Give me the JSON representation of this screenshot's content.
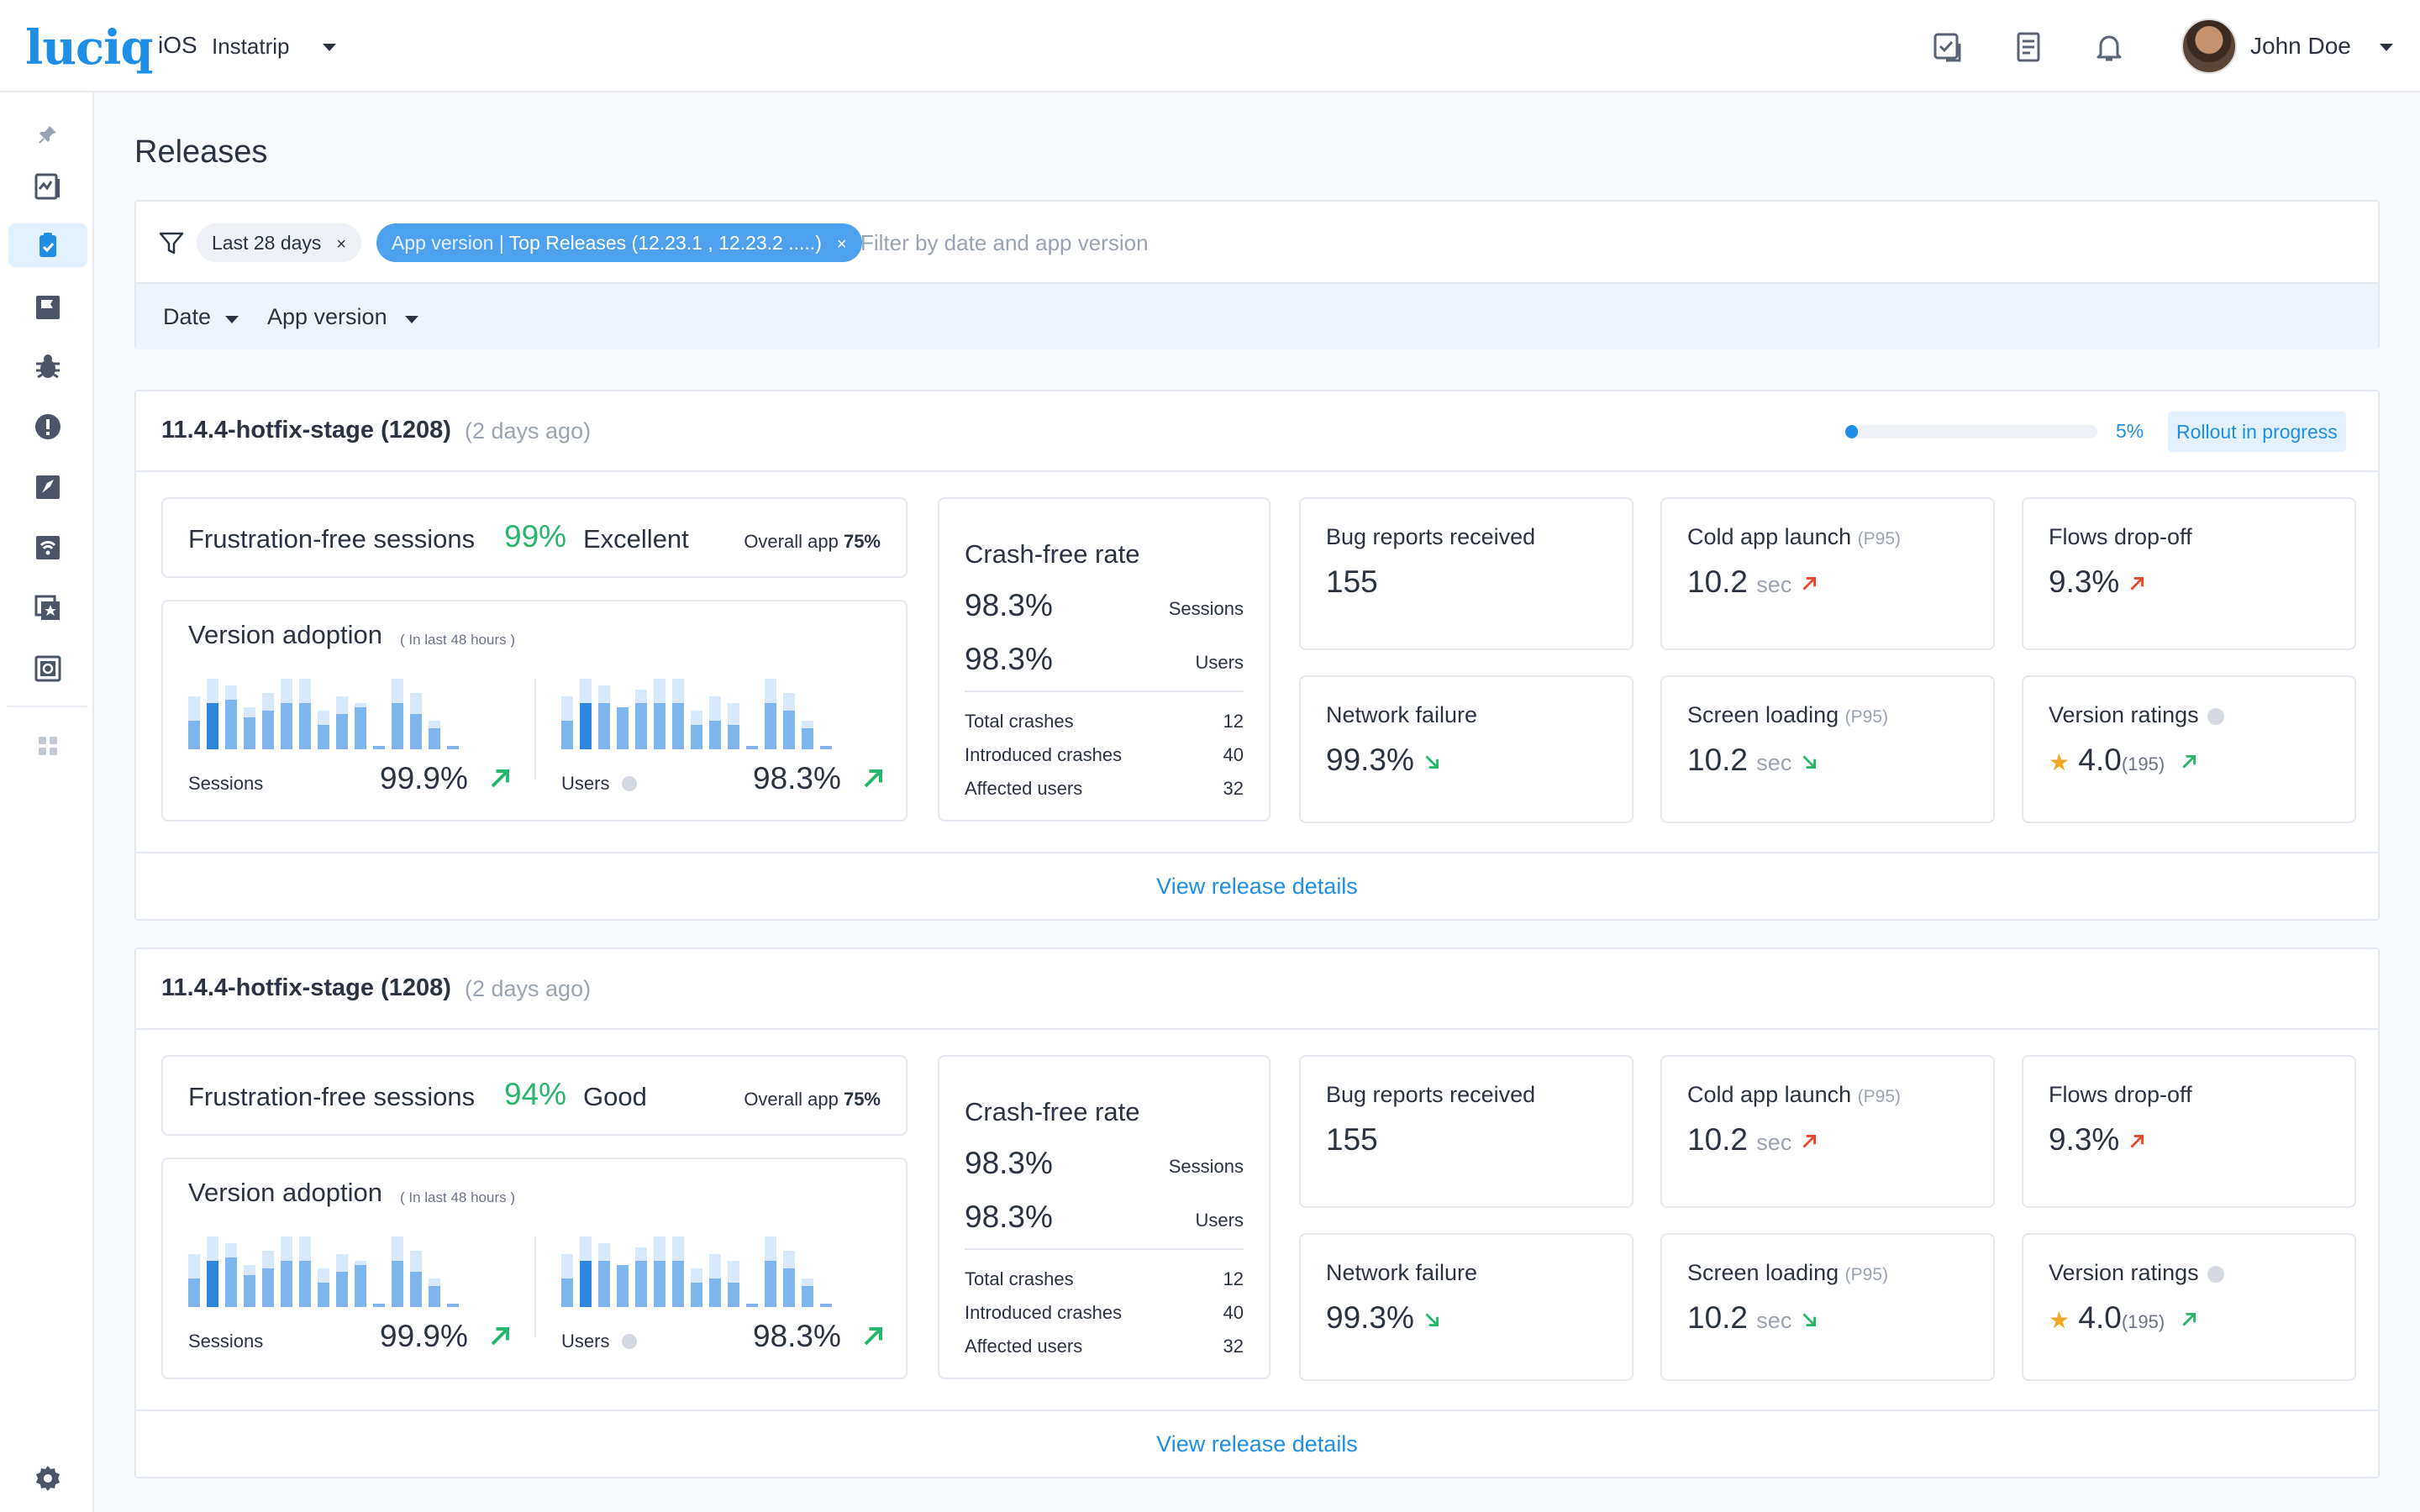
{
  "header": {
    "logo": "luciq",
    "platform": "iOS",
    "app_name": "Instatrip",
    "user_name": "John Doe",
    "icons": [
      "checklist-icon",
      "document-icon",
      "bell-icon"
    ]
  },
  "sidebar": {
    "items": [
      "pin-icon",
      "dashboard-icon",
      "releases-icon",
      "flag-icon",
      "bug-icon",
      "alert-icon",
      "launch-icon",
      "network-icon",
      "star-list-icon",
      "screen-loading-icon",
      "apps-grid-icon",
      "gear-icon"
    ],
    "active": "releases-icon"
  },
  "page": {
    "title": "Releases"
  },
  "filters": {
    "chip_date": "Last 28 days",
    "chip_version_key": "App version | ",
    "chip_version_value": "Top Releases (12.23.1 , 12.23.2 .....)",
    "chip_close": "×",
    "placeholder": "Filter by date and app version",
    "date_label": "Date",
    "version_label": "App version"
  },
  "colors": {
    "accent": "#1f8ee6",
    "good": "#27b76a",
    "bad": "#e8452c",
    "star": "#f5a623"
  },
  "releases": [
    {
      "name": "11.4.4-hotfix-stage (1208)",
      "ago": "(2 days ago)",
      "rollout_percent": 5,
      "rollout_label": "5%",
      "status": "Rollout in progress",
      "frustration": {
        "title": "Frustration-free sessions",
        "value": "99%",
        "rating": "Excellent",
        "overall_label": "Overall app",
        "overall_value": "75%"
      },
      "adoption": {
        "title": "Version adoption",
        "subtitle": "( In last 48 hours )",
        "sessions_label": "Sessions",
        "sessions_value": "99.9%",
        "users_label": "Users",
        "users_value": "98.3%",
        "sessions_bars": [
          [
            0.75,
            0.4,
            0
          ],
          [
            1,
            0.65,
            1
          ],
          [
            0.9,
            0.7,
            0
          ],
          [
            0.6,
            0.45,
            0
          ],
          [
            0.8,
            0.55,
            0
          ],
          [
            1,
            0.65,
            0
          ],
          [
            1,
            0.65,
            0
          ],
          [
            0.55,
            0.35,
            0
          ],
          [
            0.75,
            0.5,
            0
          ],
          [
            0.65,
            0.6,
            0
          ],
          [
            0.05,
            0.05,
            0
          ],
          [
            1,
            0.65,
            0
          ],
          [
            0.8,
            0.5,
            0
          ],
          [
            0.4,
            0.3,
            0
          ],
          [
            0.05,
            0.05,
            0
          ]
        ],
        "users_bars": [
          [
            0.75,
            0.4,
            0
          ],
          [
            1,
            0.65,
            1
          ],
          [
            0.9,
            0.65,
            0
          ],
          [
            0.6,
            0.6,
            0
          ],
          [
            0.85,
            0.65,
            0
          ],
          [
            1,
            0.65,
            0
          ],
          [
            1,
            0.65,
            0
          ],
          [
            0.55,
            0.35,
            0
          ],
          [
            0.75,
            0.4,
            0
          ],
          [
            0.65,
            0.35,
            0
          ],
          [
            0.05,
            0.05,
            0
          ],
          [
            1,
            0.65,
            0
          ],
          [
            0.8,
            0.55,
            0
          ],
          [
            0.4,
            0.3,
            0
          ],
          [
            0.05,
            0.05,
            0
          ]
        ]
      },
      "crash": {
        "title": "Crash-free rate",
        "sessions_value": "98.3%",
        "sessions_label": "Sessions",
        "users_value": "98.3%",
        "users_label": "Users",
        "rows": [
          {
            "label": "Total crashes",
            "value": "12"
          },
          {
            "label": "Introduced crashes",
            "value": "40"
          },
          {
            "label": "Affected users",
            "value": "32"
          }
        ]
      },
      "metrics": {
        "bug_reports": {
          "title": "Bug reports received",
          "value": "155"
        },
        "cold_launch": {
          "title": "Cold app launch",
          "qualifier": "(P95)",
          "value": "10.2",
          "unit": "sec",
          "trend": "up-bad"
        },
        "flows_dropoff": {
          "title": "Flows drop-off",
          "value": "9.3%",
          "trend": "up-bad"
        },
        "network_failure": {
          "title": "Network failure",
          "value": "99.3%",
          "trend": "down-good"
        },
        "screen_loading": {
          "title": "Screen loading",
          "qualifier": "(P95)",
          "value": "10.2",
          "unit": "sec",
          "trend": "down-good"
        },
        "ratings": {
          "title": "Version ratings",
          "value": "4.0",
          "count": "(195)",
          "trend": "up-good"
        }
      },
      "footer_link": "View release details"
    },
    {
      "name": "11.4.4-hotfix-stage (1208)",
      "ago": "(2 days ago)",
      "frustration": {
        "title": "Frustration-free sessions",
        "value": "94%",
        "rating": "Good",
        "overall_label": "Overall app",
        "overall_value": "75%"
      },
      "adoption": {
        "title": "Version adoption",
        "subtitle": "( In last 48 hours )",
        "sessions_label": "Sessions",
        "sessions_value": "99.9%",
        "users_label": "Users",
        "users_value": "98.3%"
      },
      "crash": {
        "title": "Crash-free rate",
        "sessions_value": "98.3%",
        "sessions_label": "Sessions",
        "users_value": "98.3%",
        "users_label": "Users",
        "rows": [
          {
            "label": "Total crashes",
            "value": "12"
          },
          {
            "label": "Introduced crashes",
            "value": "40"
          },
          {
            "label": "Affected users",
            "value": "32"
          }
        ]
      },
      "metrics": {
        "bug_reports": {
          "title": "Bug reports received",
          "value": "155"
        },
        "cold_launch": {
          "title": "Cold app launch",
          "qualifier": "(P95)",
          "value": "10.2",
          "unit": "sec",
          "trend": "up-bad"
        },
        "flows_dropoff": {
          "title": "Flows drop-off",
          "value": "9.3%",
          "trend": "up-bad"
        },
        "network_failure": {
          "title": "Network failure",
          "value": "99.3%",
          "trend": "down-good"
        },
        "screen_loading": {
          "title": "Screen loading",
          "qualifier": "(P95)",
          "value": "10.2",
          "unit": "sec",
          "trend": "down-good"
        },
        "ratings": {
          "title": "Version ratings",
          "value": "4.0",
          "count": "(195)",
          "trend": "up-good"
        }
      },
      "footer_link": "View release details"
    }
  ]
}
